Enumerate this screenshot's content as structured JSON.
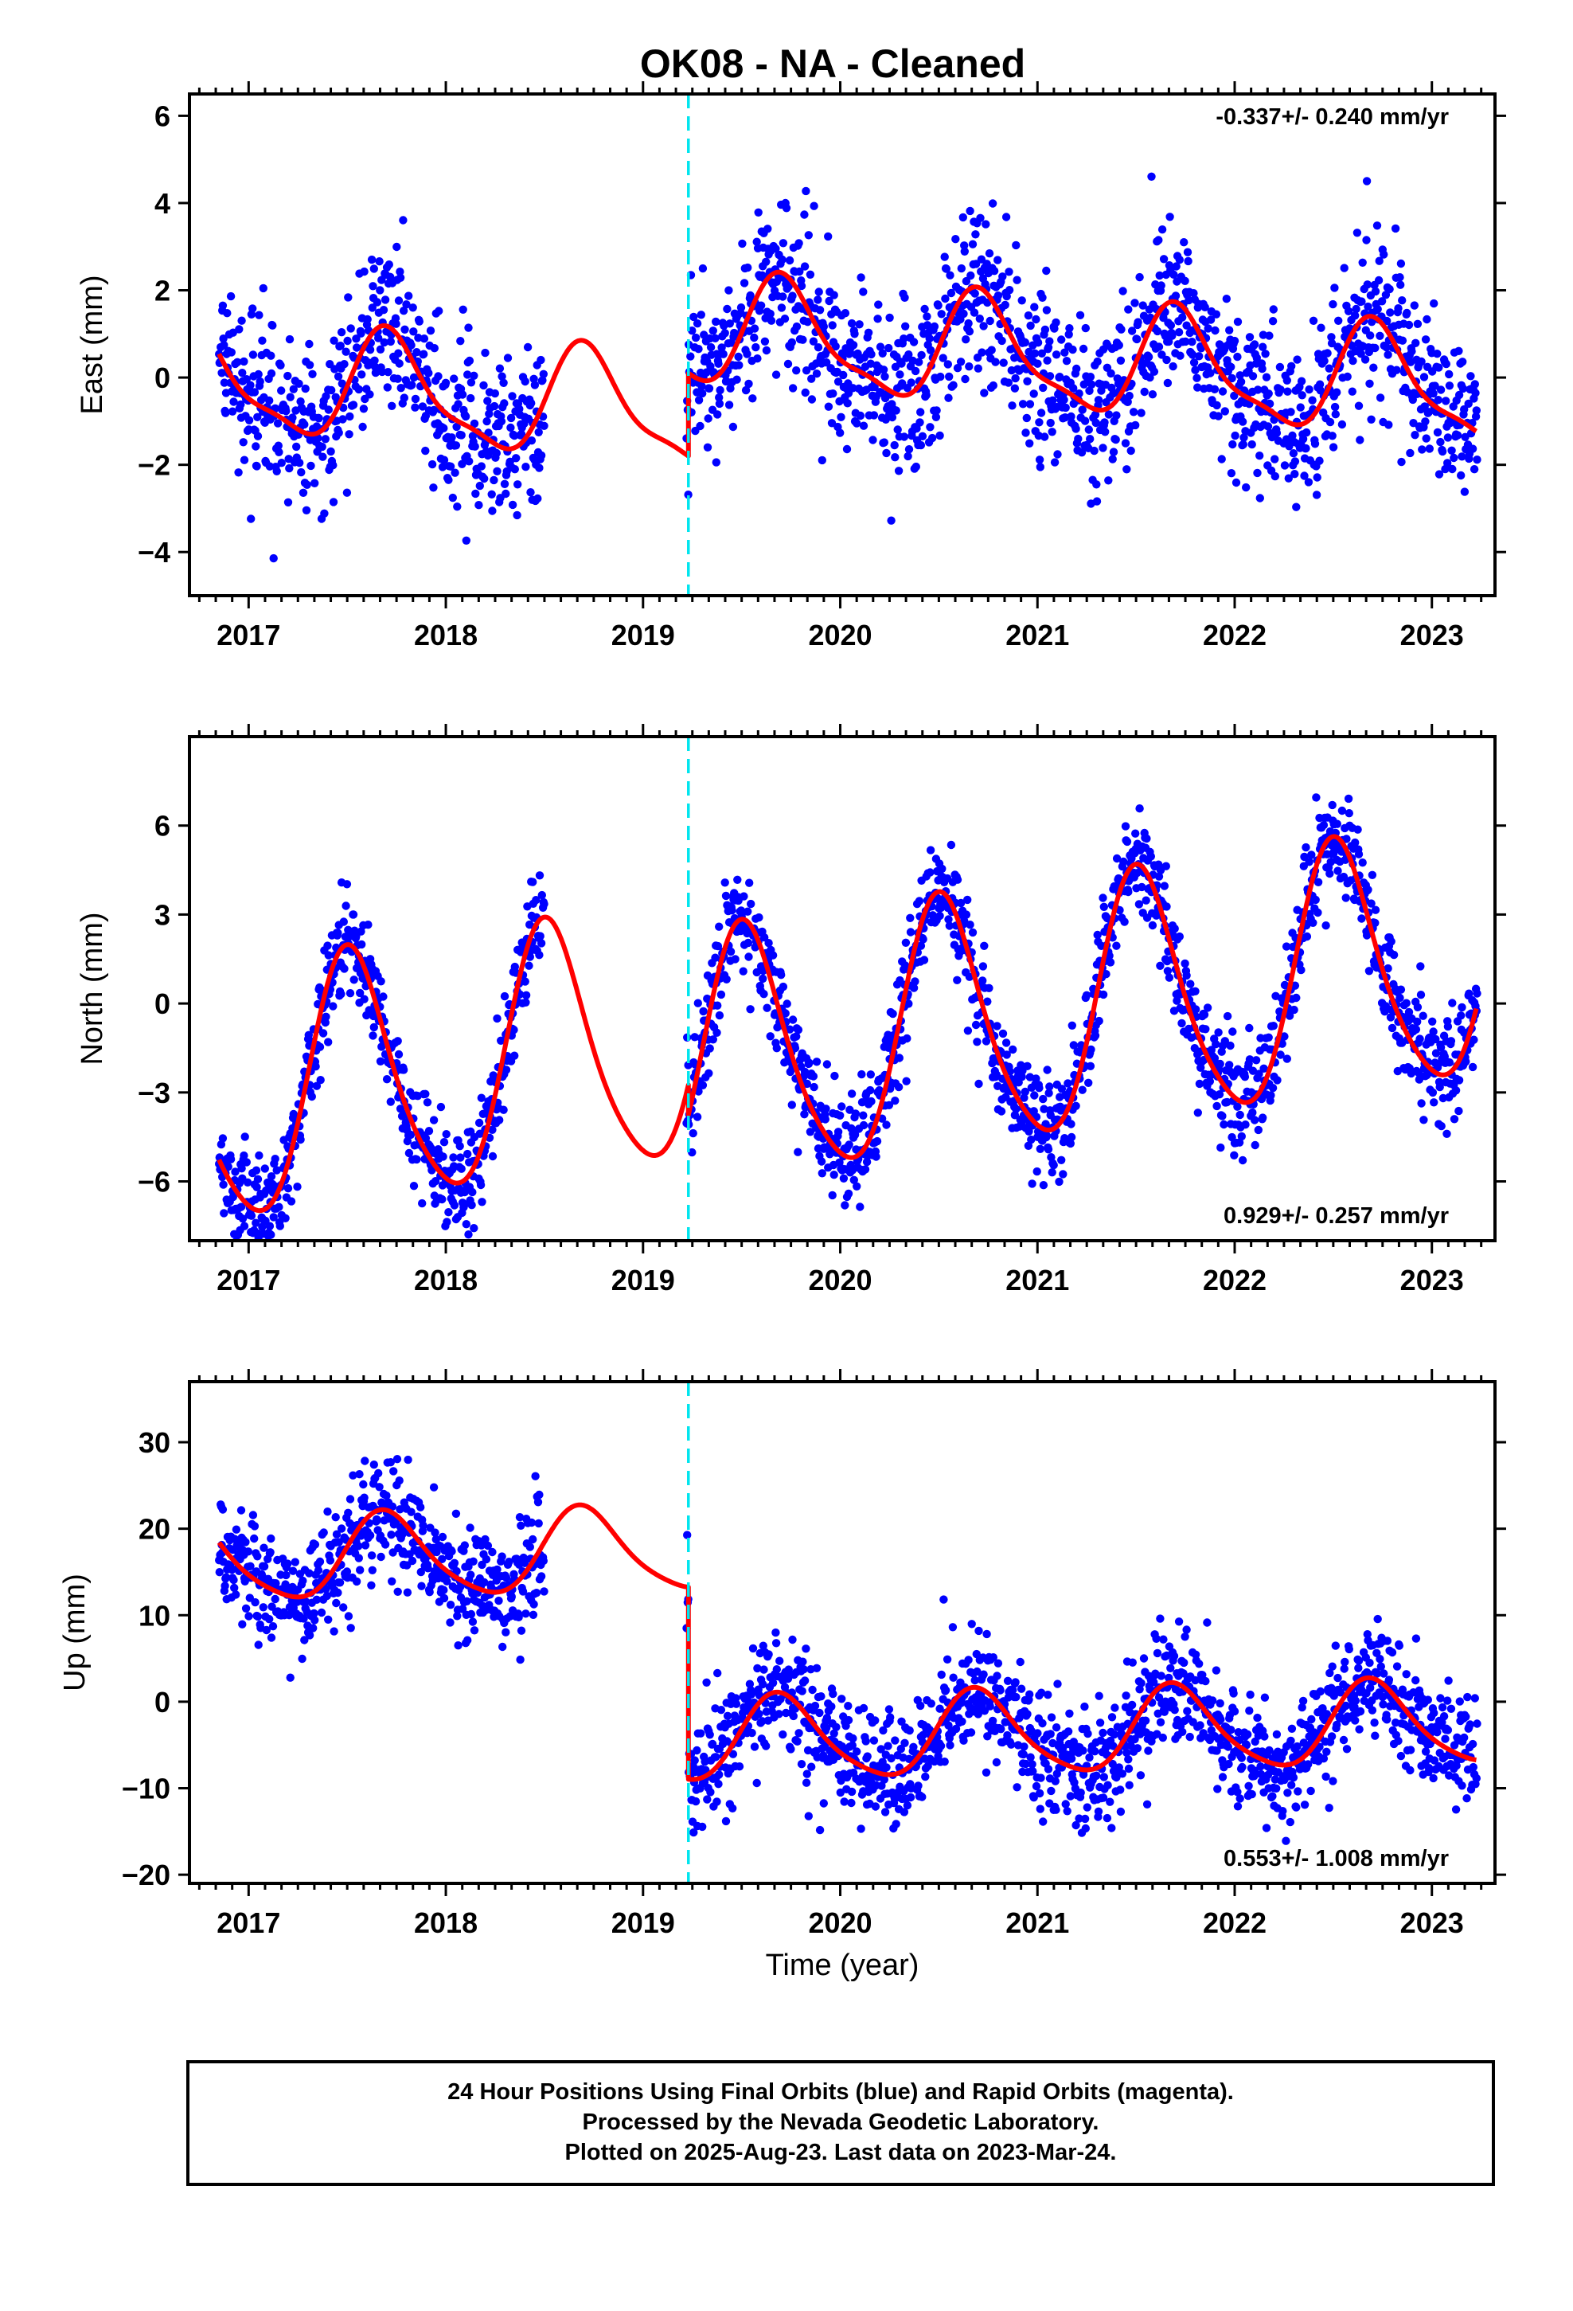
{
  "title": "OK08  - NA - Cleaned",
  "xlabel": "Time (year)",
  "footer": [
    "24 Hour Positions Using Final Orbits (blue) and Rapid Orbits (magenta).",
    "Processed by the Nevada Geodetic Laboratory.",
    "Plotted on 2025-Aug-23. Last data on 2023-Mar-24."
  ],
  "colors": {
    "points": "#0000ff",
    "model": "#ff0000",
    "offset_line": "#00e5ee",
    "frame": "#000000"
  },
  "chart_data": [
    {
      "type": "scatter",
      "component": "east",
      "ylabel": "East (mm)",
      "rate_label": "-0.337+/- 0.240 mm/yr",
      "xlim": [
        2016.7,
        2023.32
      ],
      "ylim": [
        -5,
        6.5
      ],
      "xticks": [
        2017,
        2018,
        2019,
        2020,
        2021,
        2022,
        2023
      ],
      "yticks": [
        -4,
        -2,
        0,
        2,
        4,
        6
      ],
      "offset_epoch": 2019.23,
      "data_gap": [
        2018.5,
        2019.22
      ],
      "model": {
        "mean_before": -1.1,
        "mean_after": 0.8,
        "trend": -0.337,
        "annual_amp": 1.2,
        "annual_peak": 2016.72,
        "semi_amp": 0.35,
        "scatter_sd": 0.95
      }
    },
    {
      "type": "scatter",
      "component": "north",
      "ylabel": "North (mm)",
      "rate_label": "0.929+/- 0.257 mm/yr",
      "xlim": [
        2016.7,
        2023.32
      ],
      "ylim": [
        -8,
        9
      ],
      "xticks": [
        2017,
        2018,
        2019,
        2020,
        2021,
        2022,
        2023
      ],
      "yticks": [
        -6,
        -3,
        0,
        3,
        6
      ],
      "offset_epoch": 2019.23,
      "data_gap": [
        2018.5,
        2019.22
      ],
      "model": {
        "mean_before": -0.4,
        "mean_after": -1.4,
        "trend": 0.929,
        "annual_amp": 4.2,
        "annual_peak": 2016.52,
        "semi_amp": 0.6,
        "scatter_sd": 0.9
      }
    },
    {
      "type": "scatter",
      "component": "up",
      "ylabel": "Up (mm)",
      "rate_label": "0.553+/- 1.008 mm/yr",
      "xlim": [
        2016.7,
        2023.32
      ],
      "ylim": [
        -21,
        37
      ],
      "xticks": [
        2017,
        2018,
        2019,
        2020,
        2021,
        2022,
        2023
      ],
      "yticks": [
        -20,
        -10,
        0,
        10,
        20,
        30
      ],
      "offset_epoch": 2019.23,
      "data_gap": [
        2018.5,
        2019.22
      ],
      "model": {
        "mean_before": 18.0,
        "mean_after": -4.2,
        "trend": 0.553,
        "annual_amp": 4.8,
        "annual_peak": 2016.7,
        "semi_amp": 0.8,
        "scatter_sd": 3.3
      }
    }
  ]
}
